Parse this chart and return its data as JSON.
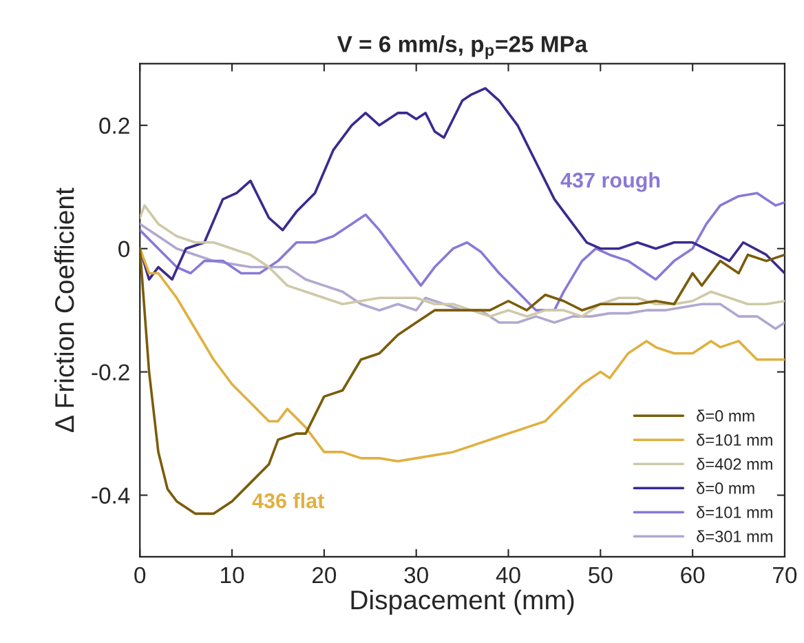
{
  "chart_data": {
    "type": "line",
    "title": "V = 6 mm/s, p$_{p}$=25 MPa",
    "xlabel": "Dispacement (mm)",
    "ylabel": "Δ Friction Coefficient",
    "xlim": [
      0,
      70
    ],
    "xticks": [
      0,
      10,
      20,
      30,
      40,
      50,
      60,
      70
    ],
    "ylim": [
      -0.5,
      0.3
    ],
    "yticks": [
      -0.4,
      -0.2,
      0,
      0.2
    ],
    "grid": false,
    "legend": "bottom right",
    "marker": "none",
    "line_style": "solid",
    "annotations": [
      "437 rough",
      "436 flat"
    ],
    "series": [
      {
        "name": "δ=0 mm",
        "color": "#7a5c0a",
        "x": [
          0,
          1,
          2,
          3,
          4,
          6,
          8,
          10,
          12,
          14,
          15,
          17,
          18,
          20,
          22,
          24,
          26,
          28,
          30,
          32,
          34,
          36,
          38,
          40,
          42,
          44,
          46,
          48,
          50,
          52,
          54,
          56,
          58,
          60,
          61,
          63,
          65,
          66,
          68,
          70
        ],
        "values": [
          0,
          -0.2,
          -0.33,
          -0.39,
          -0.41,
          -0.43,
          -0.43,
          -0.41,
          -0.38,
          -0.35,
          -0.31,
          -0.3,
          -0.3,
          -0.24,
          -0.23,
          -0.18,
          -0.17,
          -0.14,
          -0.12,
          -0.1,
          -0.1,
          -0.1,
          -0.1,
          -0.085,
          -0.1,
          -0.075,
          -0.085,
          -0.1,
          -0.09,
          -0.09,
          -0.09,
          -0.085,
          -0.09,
          -0.04,
          -0.06,
          -0.02,
          -0.04,
          -0.01,
          -0.02,
          -0.01
        ]
      },
      {
        "name": "δ=101 mm",
        "color": "#e0b040",
        "x": [
          0,
          1,
          2,
          4,
          6,
          8,
          10,
          12,
          14,
          15,
          16,
          18,
          20,
          22,
          24,
          26,
          28,
          30,
          34,
          38,
          40,
          42,
          44,
          46,
          48,
          50,
          51,
          53,
          55,
          56,
          58,
          60,
          62,
          63,
          65,
          67,
          70
        ],
        "values": [
          0,
          -0.04,
          -0.04,
          -0.08,
          -0.13,
          -0.18,
          -0.22,
          -0.25,
          -0.28,
          -0.28,
          -0.26,
          -0.29,
          -0.33,
          -0.33,
          -0.34,
          -0.34,
          -0.345,
          -0.34,
          -0.33,
          -0.31,
          -0.3,
          -0.29,
          -0.28,
          -0.25,
          -0.22,
          -0.2,
          -0.21,
          -0.17,
          -0.15,
          -0.16,
          -0.17,
          -0.17,
          -0.15,
          -0.16,
          -0.15,
          -0.18,
          -0.18
        ]
      },
      {
        "name": "δ=402 mm",
        "color": "#cfc9a8",
        "x": [
          0,
          0.5,
          2,
          4,
          6,
          8,
          10,
          12,
          14,
          16,
          18,
          20,
          22,
          24,
          26,
          28,
          30,
          32,
          34,
          36,
          38,
          40,
          42,
          44,
          46,
          48,
          50,
          52,
          54,
          56,
          58,
          60,
          62,
          64,
          66,
          68,
          70
        ],
        "values": [
          0.05,
          0.07,
          0.04,
          0.02,
          0.01,
          0.01,
          0,
          -0.01,
          -0.03,
          -0.06,
          -0.07,
          -0.08,
          -0.09,
          -0.085,
          -0.08,
          -0.08,
          -0.08,
          -0.09,
          -0.09,
          -0.1,
          -0.11,
          -0.1,
          -0.11,
          -0.1,
          -0.1,
          -0.11,
          -0.09,
          -0.08,
          -0.08,
          -0.09,
          -0.09,
          -0.085,
          -0.07,
          -0.08,
          -0.09,
          -0.09,
          -0.085
        ]
      },
      {
        "name": "δ=0 mm",
        "color": "#3b2a8f",
        "x": [
          0,
          1,
          2,
          3.5,
          5,
          7,
          9,
          10.5,
          12,
          14,
          15.5,
          17,
          19,
          21,
          23,
          24.5,
          26,
          28,
          29,
          30,
          31,
          32,
          33,
          35,
          36,
          37.5,
          39,
          41,
          43,
          45,
          47,
          48.5,
          50,
          52,
          54,
          56,
          58,
          60,
          62,
          64,
          65.5,
          68,
          70
        ],
        "values": [
          0,
          -0.05,
          -0.03,
          -0.05,
          0,
          0.01,
          0.08,
          0.09,
          0.11,
          0.05,
          0.03,
          0.06,
          0.09,
          0.16,
          0.2,
          0.22,
          0.2,
          0.22,
          0.22,
          0.21,
          0.22,
          0.19,
          0.18,
          0.24,
          0.25,
          0.26,
          0.24,
          0.2,
          0.14,
          0.08,
          0.04,
          0.01,
          0,
          0,
          0.01,
          0,
          0.01,
          0.01,
          -0.005,
          -0.02,
          0.01,
          -0.01,
          -0.04
        ]
      },
      {
        "name": "δ=101 mm",
        "color": "#8a78d8",
        "x": [
          0,
          2,
          4,
          5.5,
          7,
          9,
          11,
          13,
          15,
          17,
          19,
          21,
          23,
          24.5,
          26,
          28,
          29.5,
          30.5,
          32,
          34,
          35.5,
          37,
          39,
          41,
          43,
          45,
          46,
          48,
          49.5,
          51,
          53,
          55,
          56,
          58,
          60,
          61.5,
          63,
          65,
          67,
          69,
          70
        ],
        "values": [
          0.03,
          0,
          -0.03,
          -0.04,
          -0.02,
          -0.02,
          -0.04,
          -0.04,
          -0.02,
          0.01,
          0.01,
          0.02,
          0.04,
          0.055,
          0.03,
          -0.01,
          -0.04,
          -0.06,
          -0.03,
          0,
          0.01,
          -0.005,
          -0.04,
          -0.07,
          -0.1,
          -0.1,
          -0.07,
          -0.02,
          0,
          -0.01,
          -0.02,
          -0.04,
          -0.05,
          -0.02,
          0,
          0.04,
          0.07,
          0.085,
          0.09,
          0.07,
          0.075
        ]
      },
      {
        "name": "δ=301 mm",
        "color": "#b0a8d0",
        "x": [
          0,
          2,
          4,
          6,
          8,
          10,
          12,
          14,
          16,
          18,
          20,
          22,
          24,
          26,
          28,
          30,
          31,
          33,
          35,
          37,
          39,
          41,
          43,
          45,
          47,
          49,
          51,
          53,
          55,
          57,
          59,
          61,
          63,
          65,
          67,
          69,
          70
        ],
        "values": [
          0.04,
          0.02,
          0,
          -0.01,
          -0.02,
          -0.025,
          -0.03,
          -0.03,
          -0.03,
          -0.05,
          -0.06,
          -0.07,
          -0.09,
          -0.1,
          -0.09,
          -0.1,
          -0.08,
          -0.09,
          -0.1,
          -0.1,
          -0.12,
          -0.12,
          -0.11,
          -0.12,
          -0.11,
          -0.11,
          -0.105,
          -0.105,
          -0.1,
          -0.1,
          -0.095,
          -0.09,
          -0.09,
          -0.11,
          -0.11,
          -0.13,
          -0.12
        ]
      }
    ]
  }
}
